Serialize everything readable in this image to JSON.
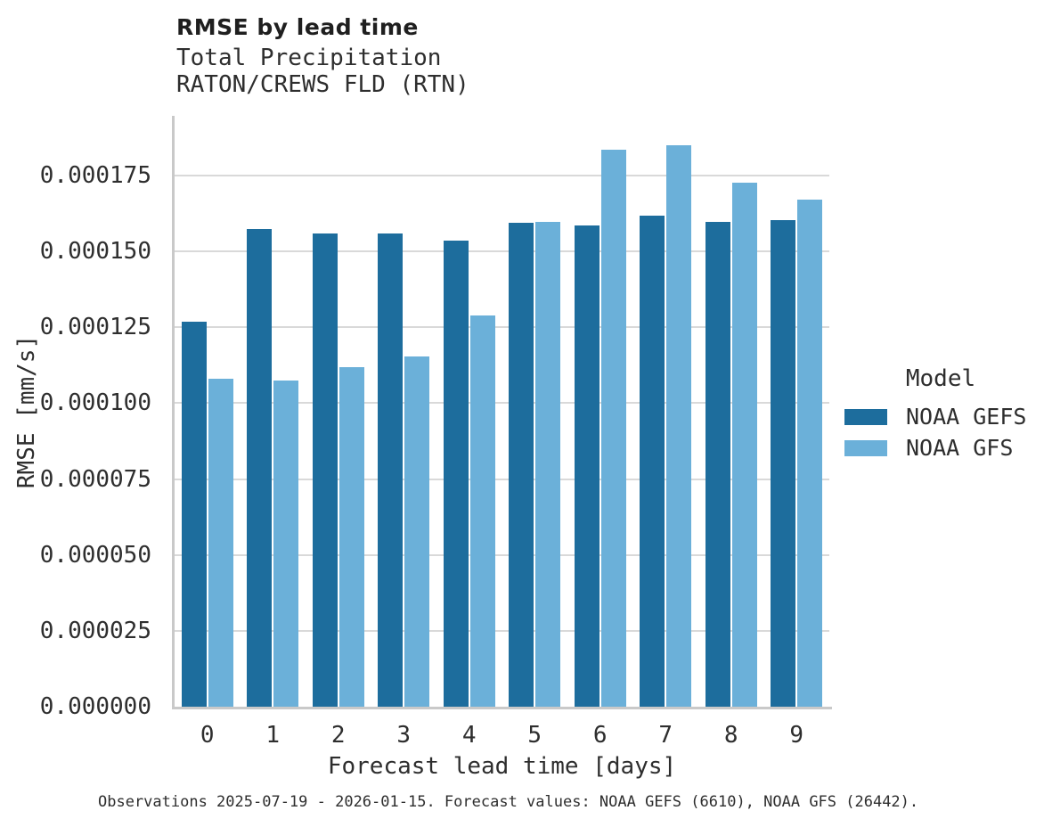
{
  "header": {
    "title": "RMSE by lead time",
    "subtitle_line1": "Total Precipitation",
    "subtitle_line2": "RATON/CREWS FLD (RTN)"
  },
  "chart_data": {
    "type": "bar",
    "title": "RMSE by lead time",
    "subtitle": [
      "Total Precipitation",
      "RATON/CREWS FLD (RTN)"
    ],
    "categories": [
      "0",
      "1",
      "2",
      "3",
      "4",
      "5",
      "6",
      "7",
      "8",
      "9"
    ],
    "series": [
      {
        "name": "NOAA GEFS",
        "color": "#1d6d9d",
        "values": [
          0.000127,
          0.0001574,
          0.0001558,
          0.000156,
          0.0001535,
          0.0001596,
          0.0001586,
          0.0001617,
          0.0001598,
          0.0001602
        ]
      },
      {
        "name": "NOAA GFS",
        "color": "#6bb0d9",
        "values": [
          0.0001082,
          0.0001074,
          0.0001118,
          0.0001154,
          0.000129,
          0.0001598,
          0.0001836,
          0.0001851,
          0.0001726,
          0.0001671
        ]
      }
    ],
    "xlabel": "Forecast lead time [days]",
    "ylabel": "RMSE [mm/s]",
    "ylim": [
      0,
      0.0001947
    ],
    "yticks": [
      0,
      2.5e-05,
      5e-05,
      7.5e-05,
      0.0001,
      0.000125,
      0.00015,
      0.000175
    ],
    "ytick_labels": [
      "0.000000",
      "0.000025",
      "0.000050",
      "0.000075",
      "0.000100",
      "0.000125",
      "0.000150",
      "0.000175"
    ],
    "grid": "horizontal-major",
    "legend_title": "Model",
    "legend_position": "right-center"
  },
  "footer": {
    "caption": "Observations 2025-07-19 - 2026-01-15. Forecast values: NOAA GEFS (6610), NOAA GFS (26442)."
  },
  "colors": {
    "gefs_bar": "#1d6d9d",
    "gfs_bar": "#6bb0d9",
    "gridline": "#d9d9d9",
    "spine": "#c9c9c9",
    "title_text": "#1f1f1f",
    "body_text": "#2e2e2e",
    "background": "#ffffff"
  }
}
